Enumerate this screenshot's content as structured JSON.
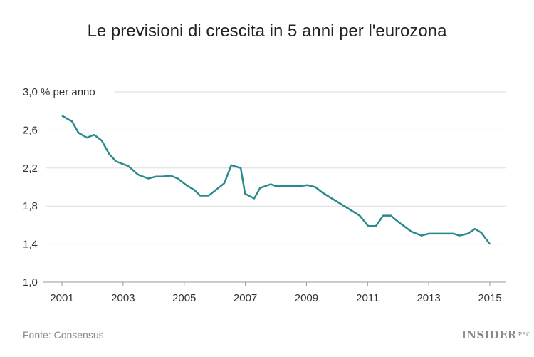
{
  "chart_data": {
    "type": "line",
    "title": "Le previsioni di crescita in 5 anni per l'eurozona",
    "ylabel_unit": "% per anno",
    "xlabel": "",
    "xlim": [
      2000.4,
      2015.5
    ],
    "ylim": [
      1.0,
      3.0
    ],
    "x_ticks": [
      2001,
      2003,
      2005,
      2007,
      2009,
      2011,
      2013,
      2015
    ],
    "y_ticks": [
      1.0,
      1.4,
      1.8,
      2.2,
      2.6,
      3.0
    ],
    "y_tick_labels": [
      "1,0",
      "1,4",
      "1,8",
      "2,2",
      "2,6",
      "3,0"
    ],
    "grid": true,
    "line_color": "#2a8a8c",
    "series": [
      {
        "x": [
          2001.0,
          2001.33,
          2001.54,
          2001.82,
          2002.05,
          2002.3,
          2002.54,
          2002.77,
          2003.17,
          2003.49,
          2003.82,
          2004.07,
          2004.28,
          2004.56,
          2004.79,
          2005.07,
          2005.33,
          2005.52,
          2005.8,
          2006.31,
          2006.54,
          2006.85,
          2006.99,
          2007.29,
          2007.48,
          2007.83,
          2008.01,
          2008.76,
          2009.04,
          2009.29,
          2009.53,
          2010.74,
          2011.02,
          2011.27,
          2011.51,
          2011.76,
          2012.02,
          2012.44,
          2012.76,
          2013.0,
          2013.81,
          2014.0,
          2014.28,
          2014.51,
          2014.72,
          2015.0
        ],
        "y": [
          2.75,
          2.69,
          2.57,
          2.52,
          2.55,
          2.49,
          2.35,
          2.27,
          2.22,
          2.13,
          2.09,
          2.11,
          2.11,
          2.12,
          2.09,
          2.02,
          1.97,
          1.91,
          1.91,
          2.04,
          2.23,
          2.2,
          1.93,
          1.88,
          1.99,
          2.03,
          2.01,
          2.01,
          2.02,
          2.0,
          1.94,
          1.7,
          1.59,
          1.59,
          1.7,
          1.7,
          1.63,
          1.53,
          1.49,
          1.51,
          1.51,
          1.49,
          1.51,
          1.56,
          1.52,
          1.4
        ]
      }
    ]
  },
  "source": "Fonte: Consensus",
  "logo": {
    "main": "INSIDER",
    "sub": "PRO"
  }
}
